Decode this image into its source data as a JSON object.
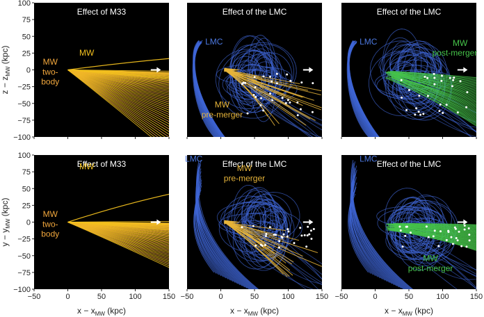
{
  "chart_data": {
    "type": "line",
    "xlim": [
      -50,
      150
    ],
    "ylim": [
      -100,
      100
    ],
    "x_ticks": [
      "-50",
      "0",
      "50",
      "100",
      "150"
    ],
    "y_ticks": [
      "100",
      "75",
      "50",
      "25",
      "0",
      "-25",
      "-50",
      "-75",
      "-100"
    ],
    "xlabel": {
      "main": "x − x",
      "sub": "MW",
      "unit": " (kpc)"
    },
    "ylabels": [
      {
        "main": "z − z",
        "sub": "MW",
        "unit": " (kpc)"
      },
      {
        "main": "y − y",
        "sub": "MW",
        "unit": " (kpc)"
      }
    ],
    "colors": {
      "m33": "#f2c01e",
      "mw_two_body": "#f0a63c",
      "lmc": "#3f66d6",
      "pre_merger": "#e6b43a",
      "post_merger": "#46c44a",
      "points": "#ffffff",
      "arrow": "#ffffff"
    },
    "panels": [
      {
        "id": "top-left",
        "row": 0,
        "col": 0,
        "kind": "m33",
        "title": "Effect of M33",
        "labels": [
          {
            "text": "MW",
            "x": 28,
            "y": 21,
            "color": "#f2c01e",
            "anchor": "middle"
          },
          {
            "text": "MW",
            "x": -26,
            "y": 8,
            "color": "#f0a63c",
            "anchor": "middle"
          },
          {
            "text": "two-",
            "x": -26,
            "y": -7,
            "color": "#f0a63c",
            "anchor": "middle"
          },
          {
            "text": "body",
            "x": -26,
            "y": -22,
            "color": "#f0a63c",
            "anchor": "middle"
          }
        ]
      },
      {
        "id": "top-middle",
        "row": 0,
        "col": 1,
        "kind": "lmc-pre",
        "title": "Effect of the LMC",
        "labels": [
          {
            "text": "LMC",
            "x": -10,
            "y": 38,
            "color": "#4c78e0",
            "anchor": "middle"
          },
          {
            "text": "MW",
            "x": 2,
            "y": -56,
            "color": "#e6b43a",
            "anchor": "middle"
          },
          {
            "text": "pre-merger",
            "x": 2,
            "y": -71,
            "color": "#e6b43a",
            "anchor": "middle"
          }
        ]
      },
      {
        "id": "top-right",
        "row": 0,
        "col": 2,
        "kind": "lmc-post",
        "title": "Effect of the LMC",
        "labels": [
          {
            "text": "LMC",
            "x": -10,
            "y": 38,
            "color": "#4c78e0",
            "anchor": "middle"
          },
          {
            "text": "MW",
            "x": 126,
            "y": 36,
            "color": "#46c44a",
            "anchor": "middle"
          },
          {
            "text": "post-merger",
            "x": 118,
            "y": 21,
            "color": "#46c44a",
            "anchor": "middle"
          }
        ]
      },
      {
        "id": "bottom-left",
        "row": 1,
        "col": 0,
        "kind": "m33",
        "title": "Effect of M33",
        "labels": [
          {
            "text": "MW",
            "x": 28,
            "y": 79,
            "color": "#f2c01e",
            "anchor": "middle"
          },
          {
            "text": "MW",
            "x": -26,
            "y": 8,
            "color": "#f0a63c",
            "anchor": "middle"
          },
          {
            "text": "two-",
            "x": -26,
            "y": -7,
            "color": "#f0a63c",
            "anchor": "middle"
          },
          {
            "text": "body",
            "x": -26,
            "y": -22,
            "color": "#f0a63c",
            "anchor": "middle"
          }
        ]
      },
      {
        "id": "bottom-middle",
        "row": 1,
        "col": 1,
        "kind": "lmc-pre",
        "title": "Effect of the LMC",
        "labels": [
          {
            "text": "LMC",
            "x": -40,
            "y": 90,
            "color": "#4c78e0",
            "anchor": "middle"
          },
          {
            "text": "MW",
            "x": 35,
            "y": 76,
            "color": "#e6b43a",
            "anchor": "middle"
          },
          {
            "text": "pre-merger",
            "x": 35,
            "y": 61,
            "color": "#e6b43a",
            "anchor": "middle"
          }
        ]
      },
      {
        "id": "bottom-right",
        "row": 1,
        "col": 2,
        "kind": "lmc-post",
        "title": "Effect of the LMC",
        "labels": [
          {
            "text": "LMC",
            "x": -10,
            "y": 90,
            "color": "#4c78e0",
            "anchor": "middle"
          },
          {
            "text": "MW",
            "x": 82,
            "y": -58,
            "color": "#46c44a",
            "anchor": "middle"
          },
          {
            "text": "post-merger",
            "x": 82,
            "y": -73,
            "color": "#46c44a",
            "anchor": "middle"
          }
        ]
      }
    ]
  }
}
